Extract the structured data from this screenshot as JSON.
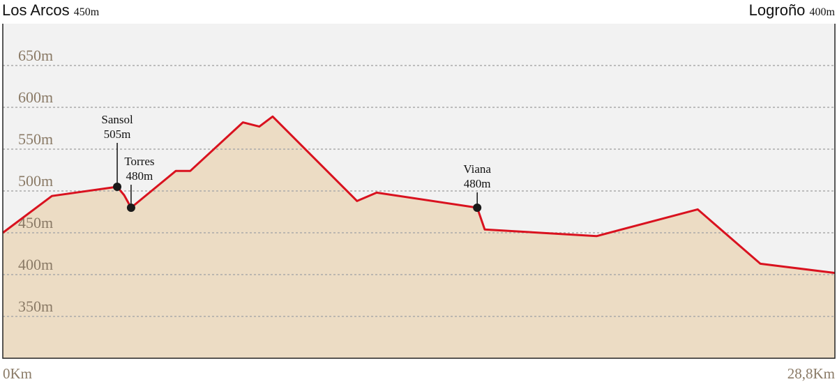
{
  "chart_data": {
    "type": "area",
    "start": {
      "name": "Los Arcos",
      "elevation": "450m"
    },
    "end": {
      "name": "Logroño",
      "elevation": "400m"
    },
    "x": [
      0,
      1.7,
      3.96,
      4.2,
      4.44,
      5.99,
      6.49,
      8.31,
      8.88,
      9.34,
      12.26,
      12.94,
      16.42,
      16.68,
      20.55,
      24.05,
      26.22,
      28.8
    ],
    "values": [
      450,
      494,
      505,
      495,
      480,
      524,
      524,
      582,
      577,
      589,
      488,
      498,
      480,
      454,
      446,
      478,
      413,
      402
    ],
    "line_color": "#d9121f",
    "fill_color": "#ecdcc4",
    "xlim": [
      0,
      28.8
    ],
    "xticks": [
      {
        "value": 0,
        "label": "0Km"
      },
      {
        "value": 28.8,
        "label": "28,8Km"
      }
    ],
    "ylim": [
      300,
      700
    ],
    "yticks": [
      {
        "value": 350,
        "label": "350m"
      },
      {
        "value": 400,
        "label": "400m"
      },
      {
        "value": 450,
        "label": "450m"
      },
      {
        "value": 500,
        "label": "500m"
      },
      {
        "value": 550,
        "label": "550m"
      },
      {
        "value": 600,
        "label": "600m"
      },
      {
        "value": 650,
        "label": "650m"
      }
    ],
    "grid": true,
    "stations": [
      {
        "name": "Sansol",
        "label": "505m",
        "x": 3.96,
        "value": 505
      },
      {
        "name": "Torres",
        "label": "480m",
        "x": 4.44,
        "value": 480
      },
      {
        "name": "Viana",
        "label": "480m",
        "x": 16.42,
        "value": 480
      }
    ]
  }
}
